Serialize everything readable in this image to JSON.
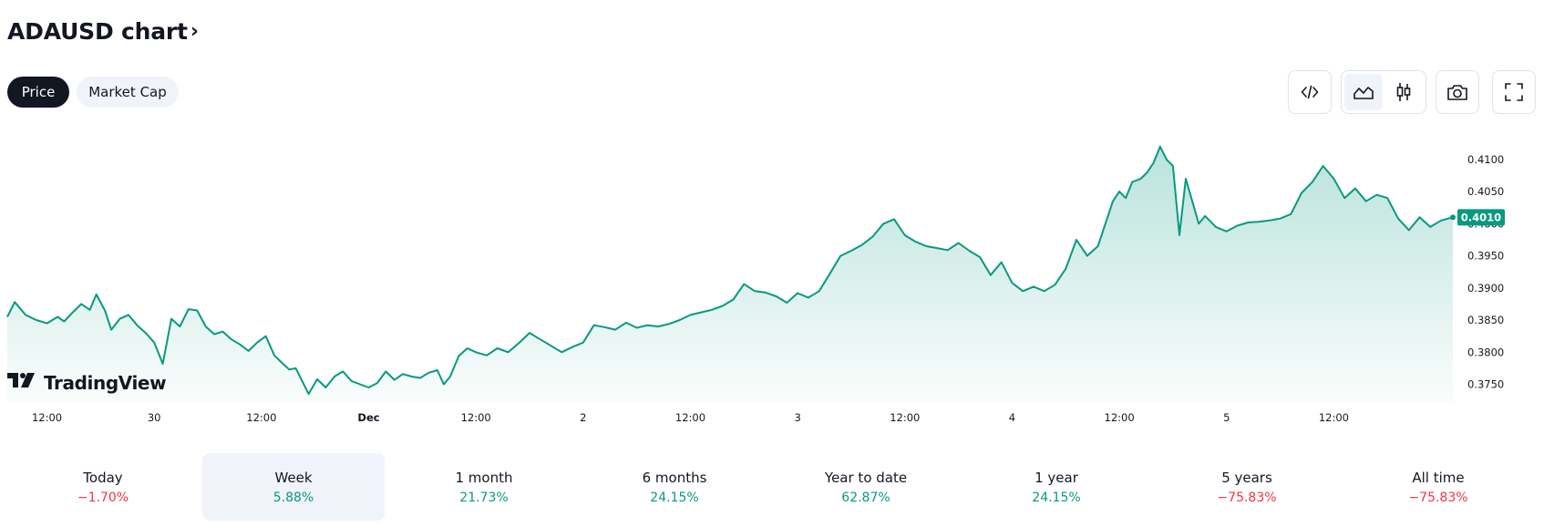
{
  "header": {
    "title": "ADAUSD chart",
    "chevron": "›"
  },
  "tabs": [
    {
      "label": "Price",
      "active": true
    },
    {
      "label": "Market Cap",
      "active": false
    }
  ],
  "toolbar": {
    "embed_icon": "code-icon",
    "area_icon": "area-chart-icon",
    "candle_icon": "candlestick-icon",
    "camera_icon": "camera-icon",
    "fullscreen_icon": "fullscreen-icon"
  },
  "colors": {
    "line": "#089981",
    "area_top": "rgba(8,153,129,0.28)",
    "area_bottom": "rgba(8,153,129,0.02)",
    "positive": "#089981",
    "negative": "#f23645",
    "text": "#131722"
  },
  "brand": {
    "logo_icon": "tradingview-logo-icon",
    "name": "TradingView"
  },
  "chart_data": {
    "type": "area",
    "title": "ADAUSD",
    "x_ticks": [
      {
        "label": "12:00",
        "t": 0.5,
        "bold": false
      },
      {
        "label": "30",
        "t": 1.0,
        "bold": false
      },
      {
        "label": "12:00",
        "t": 1.5,
        "bold": false
      },
      {
        "label": "Dec",
        "t": 2.0,
        "bold": true
      },
      {
        "label": "12:00",
        "t": 2.5,
        "bold": false
      },
      {
        "label": "2",
        "t": 3.0,
        "bold": false
      },
      {
        "label": "12:00",
        "t": 3.5,
        "bold": false
      },
      {
        "label": "3",
        "t": 4.0,
        "bold": false
      },
      {
        "label": "12:00",
        "t": 4.5,
        "bold": false
      },
      {
        "label": "4",
        "t": 5.0,
        "bold": false
      },
      {
        "label": "12:00",
        "t": 5.5,
        "bold": false
      },
      {
        "label": "5",
        "t": 6.0,
        "bold": false
      },
      {
        "label": "12:00",
        "t": 6.5,
        "bold": false
      }
    ],
    "x_range": [
      0.315,
      7.055
    ],
    "y_ticks": [
      "0.3750",
      "0.3800",
      "0.3850",
      "0.3900",
      "0.3950",
      "0.4000",
      "0.4050",
      "0.4100"
    ],
    "y_range": [
      0.3728,
      0.4124
    ],
    "last_price": "0.4010",
    "series": [
      {
        "x": [
          0.315,
          0.35,
          0.4,
          0.45,
          0.5,
          0.55,
          0.58,
          0.62,
          0.66,
          0.7,
          0.73,
          0.77,
          0.8,
          0.84,
          0.88,
          0.92,
          0.96,
          1.0,
          1.04,
          1.08,
          1.12,
          1.16,
          1.2,
          1.24,
          1.28,
          1.32,
          1.36,
          1.4,
          1.44,
          1.48,
          1.52,
          1.56,
          1.6,
          1.63,
          1.66,
          1.69,
          1.72,
          1.76,
          1.8,
          1.84,
          1.88,
          1.92,
          1.96,
          2.0,
          2.04,
          2.08,
          2.12,
          2.16,
          2.2,
          2.24,
          2.28,
          2.32,
          2.35,
          2.38,
          2.42,
          2.46,
          2.5,
          2.55,
          2.6,
          2.65,
          2.7,
          2.75,
          2.8,
          2.85,
          2.9,
          2.95,
          3.0,
          3.05,
          3.1,
          3.15,
          3.2,
          3.25,
          3.3,
          3.35,
          3.4,
          3.45,
          3.5,
          3.55,
          3.6,
          3.65,
          3.7,
          3.75,
          3.8,
          3.85,
          3.9,
          3.95,
          4.0,
          4.05,
          4.1,
          4.15,
          4.2,
          4.25,
          4.3,
          4.35,
          4.4,
          4.45,
          4.5,
          4.55,
          4.6,
          4.65,
          4.7,
          4.75,
          4.8,
          4.85,
          4.9,
          4.95,
          5.0,
          5.05,
          5.1,
          5.15,
          5.2,
          5.25,
          5.3,
          5.35,
          5.4,
          5.43,
          5.47,
          5.5,
          5.53,
          5.56,
          5.6,
          5.63,
          5.66,
          5.69,
          5.72,
          5.75,
          5.78,
          5.81,
          5.84,
          5.87,
          5.9,
          5.95,
          6.0,
          6.05,
          6.1,
          6.15,
          6.2,
          6.25,
          6.3,
          6.35,
          6.4,
          6.45,
          6.5,
          6.55,
          6.6,
          6.65,
          6.7,
          6.75,
          6.8,
          6.85,
          6.9,
          6.95,
          7.0,
          7.055
        ],
        "y": [
          0.3855,
          0.3878,
          0.3858,
          0.385,
          0.3845,
          0.3855,
          0.3848,
          0.3862,
          0.3875,
          0.3866,
          0.389,
          0.3865,
          0.3835,
          0.3852,
          0.3858,
          0.3842,
          0.383,
          0.3815,
          0.3782,
          0.3852,
          0.384,
          0.3867,
          0.3865,
          0.384,
          0.3828,
          0.3832,
          0.382,
          0.3812,
          0.3802,
          0.3815,
          0.3825,
          0.3795,
          0.3782,
          0.3773,
          0.3775,
          0.3755,
          0.3735,
          0.3758,
          0.3745,
          0.3762,
          0.377,
          0.3755,
          0.375,
          0.3745,
          0.3752,
          0.377,
          0.3757,
          0.3766,
          0.3762,
          0.376,
          0.3768,
          0.3772,
          0.375,
          0.3762,
          0.3794,
          0.3806,
          0.38,
          0.3795,
          0.3806,
          0.38,
          0.3814,
          0.383,
          0.382,
          0.381,
          0.38,
          0.3808,
          0.3815,
          0.3842,
          0.3839,
          0.3835,
          0.3846,
          0.3838,
          0.3842,
          0.384,
          0.3844,
          0.385,
          0.3858,
          0.3862,
          0.3866,
          0.3872,
          0.3882,
          0.3906,
          0.3895,
          0.3893,
          0.3887,
          0.3877,
          0.3892,
          0.3885,
          0.3895,
          0.3922,
          0.395,
          0.3958,
          0.3967,
          0.398,
          0.4,
          0.4007,
          0.3982,
          0.3972,
          0.3965,
          0.3962,
          0.3959,
          0.397,
          0.3958,
          0.3948,
          0.392,
          0.394,
          0.3908,
          0.3895,
          0.3902,
          0.3895,
          0.3905,
          0.393,
          0.3975,
          0.395,
          0.3965,
          0.3995,
          0.4035,
          0.405,
          0.404,
          0.4065,
          0.407,
          0.408,
          0.4095,
          0.412,
          0.41,
          0.409,
          0.3982,
          0.407,
          0.4035,
          0.4,
          0.4012,
          0.3995,
          0.3988,
          0.3997,
          0.4002,
          0.4003,
          0.4005,
          0.4008,
          0.4015,
          0.4048,
          0.4065,
          0.409,
          0.407,
          0.404,
          0.4055,
          0.4035,
          0.4045,
          0.404,
          0.4008,
          0.399,
          0.401,
          0.3995,
          0.4005,
          0.401
        ]
      }
    ]
  },
  "periods": [
    {
      "label": "Today",
      "value": "−1.70%",
      "sign": "neg",
      "active": false
    },
    {
      "label": "Week",
      "value": "5.88%",
      "sign": "pos",
      "active": true
    },
    {
      "label": "1 month",
      "value": "21.73%",
      "sign": "pos",
      "active": false
    },
    {
      "label": "6 months",
      "value": "24.15%",
      "sign": "pos",
      "active": false
    },
    {
      "label": "Year to date",
      "value": "62.87%",
      "sign": "pos",
      "active": false
    },
    {
      "label": "1 year",
      "value": "24.15%",
      "sign": "pos",
      "active": false
    },
    {
      "label": "5 years",
      "value": "−75.83%",
      "sign": "neg",
      "active": false
    },
    {
      "label": "All time",
      "value": "−75.83%",
      "sign": "neg",
      "active": false
    }
  ]
}
